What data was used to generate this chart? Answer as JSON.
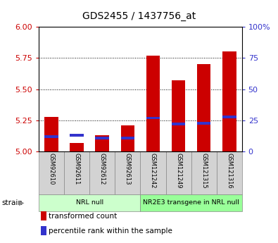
{
  "title": "GDS2455 / 1437756_at",
  "samples": [
    "GSM92610",
    "GSM92611",
    "GSM92612",
    "GSM92613",
    "GSM121242",
    "GSM121249",
    "GSM121315",
    "GSM121316"
  ],
  "transformed_count": [
    5.28,
    5.07,
    5.13,
    5.21,
    5.77,
    5.57,
    5.7,
    5.8
  ],
  "percentile_rank": [
    12,
    13,
    11,
    11,
    27,
    22,
    23,
    28
  ],
  "ylim_left": [
    5.0,
    6.0
  ],
  "yticks_left": [
    5.0,
    5.25,
    5.5,
    5.75,
    6.0
  ],
  "ylim_right": [
    0,
    100
  ],
  "yticks_right": [
    0,
    25,
    50,
    75,
    100
  ],
  "yticklabels_right": [
    "0",
    "25",
    "50",
    "75",
    "100%"
  ],
  "bar_color_red": "#cc0000",
  "bar_color_blue": "#3333cc",
  "bar_width": 0.55,
  "groups": [
    {
      "label": "NRL null",
      "indices": [
        0,
        1,
        2,
        3
      ],
      "color": "#ccffcc"
    },
    {
      "label": "NR2E3 transgene in NRL null",
      "indices": [
        4,
        5,
        6,
        7
      ],
      "color": "#99ff99"
    }
  ],
  "legend_items": [
    {
      "label": "transformed count",
      "color": "#cc0000"
    },
    {
      "label": "percentile rank within the sample",
      "color": "#3333cc"
    }
  ],
  "strain_label": "strain",
  "background_color": "#ffffff",
  "tick_label_color_left": "#cc0000",
  "tick_label_color_right": "#3333cc"
}
